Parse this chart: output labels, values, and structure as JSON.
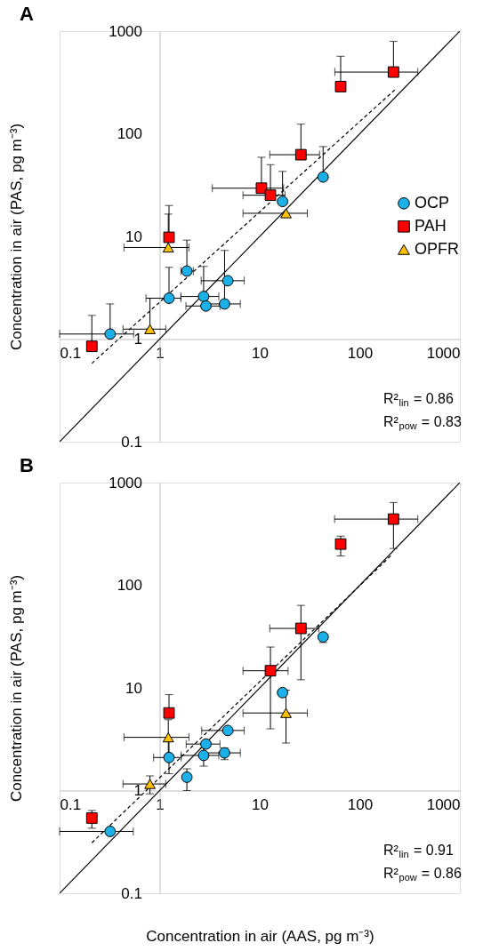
{
  "chart_data": [
    {
      "type": "scatter",
      "title": "A",
      "ylabel": "Concentration in air (PAS, pg m⁻³)",
      "xlim": [
        0.1,
        1000
      ],
      "ylim": [
        0.1,
        1000
      ],
      "xticks": [
        0.1,
        1,
        10,
        100,
        1000
      ],
      "yticks": [
        0.1,
        1,
        10,
        100,
        1000
      ],
      "log": "xy",
      "legend": "right",
      "annotations": [
        "R²$_{lin}$ = 0.86",
        "R²$_{pow}$ = 0.83"
      ],
      "series": [
        {
          "name": "OCP",
          "color": "#1cb0e8",
          "marker": "circle",
          "x": [
            0.32,
            1.24,
            1.87,
            2.75,
            2.9,
            4.45,
            4.8,
            16.9,
            43
          ],
          "values": [
            1.12,
            2.5,
            4.6,
            2.6,
            2.1,
            2.2,
            3.7,
            21.9,
            37.9
          ],
          "errors": [
            [
              1.12,
              2.2
            ],
            [
              2.5,
              5.0
            ],
            [
              4.6,
              9.2
            ],
            [
              2.6,
              5.1
            ],
            null,
            [
              2.2,
              7.3
            ],
            null,
            [
              21.9,
              43
            ],
            [
              37.9,
              75
            ]
          ],
          "xerrors": [
            [
              0.1,
              0.55
            ],
            [
              0.73,
              1.63
            ],
            [
              1.63,
              2.17
            ],
            [
              1.63,
              3.9
            ],
            [
              1.83,
              4.0
            ],
            [
              2.77,
              6.4
            ],
            [
              2.6,
              7.0
            ],
            null,
            null
          ]
        },
        {
          "name": "PAH",
          "color": "#ff0000",
          "marker": "square",
          "x": [
            0.21,
            1.24,
            10.4,
            12.8,
            25.8,
            64.4,
            217
          ],
          "values": [
            0.85,
            9.8,
            29.5,
            25.2,
            62.5,
            288,
            399
          ],
          "errors": [
            [
              0.85,
              1.7
            ],
            [
              9.8,
              20
            ],
            [
              29.5,
              59
            ],
            [
              25.2,
              50
            ],
            [
              62.5,
              124
            ],
            [
              288,
              569
            ],
            [
              399,
              794
            ]
          ],
          "xerrors": [
            null,
            null,
            [
              3.36,
              17.3
            ],
            [
              6.8,
              17.9
            ],
            [
              12.6,
              39.6
            ],
            null,
            [
              56.3,
              380
            ]
          ]
        },
        {
          "name": "OPFR",
          "color": "#ffc000",
          "marker": "triangle",
          "x": [
            0.8,
            1.22,
            18.3
          ],
          "values": [
            1.25,
            7.8,
            16.8
          ],
          "errors": [
            [
              1.25,
              2.5
            ],
            [
              7.8,
              16.5
            ],
            null
          ],
          "xerrors": [
            [
              0.43,
              1.15
            ],
            [
              0.44,
              1.96
            ],
            [
              6.8,
              29.9
            ]
          ]
        },
        {
          "type": "line",
          "color": "#000000",
          "line_style": "solid",
          "x": [
            0.1,
            1000
          ],
          "values": [
            0.1,
            1000
          ]
        },
        {
          "type": "line",
          "color": "#000000",
          "line_style": "dashed",
          "x": [
            0.21,
            225
          ],
          "values": [
            0.58,
            269
          ]
        }
      ]
    },
    {
      "type": "scatter",
      "title": "B",
      "xlabel": "Concentration in air (AAS, pg m⁻³)",
      "ylabel": "Concentration in air (PAS, pg m⁻³)",
      "xlim": [
        0.1,
        1000
      ],
      "ylim": [
        0.1,
        1000
      ],
      "xticks": [
        0.1,
        1,
        10,
        100,
        1000
      ],
      "yticks": [
        0.1,
        1,
        10,
        100,
        1000
      ],
      "log": "xy",
      "legend": "right",
      "annotations": [
        "R²$_{lin}$ = 0.91",
        "R²$_{pow}$ = 0.86"
      ],
      "series": [
        {
          "name": "OCP",
          "color": "#1cb0e8",
          "marker": "circle",
          "x": [
            0.32,
            1.24,
            1.87,
            2.75,
            2.9,
            4.45,
            4.8,
            16.9,
            43
          ],
          "values": [
            0.4,
            2.1,
            1.35,
            2.2,
            2.84,
            2.33,
            3.85,
            9.0,
            31.4
          ],
          "errors": [
            null,
            [
              1.46,
              3.04
            ],
            [
              1.0,
              1.63
            ],
            [
              1.73,
              2.6
            ],
            null,
            [
              2.0,
              2.6
            ],
            null,
            null,
            [
              27.7,
              31.4
            ]
          ],
          "xerrors": [
            [
              0.1,
              0.545
            ],
            [
              0.87,
              1.64
            ],
            null,
            [
              1.64,
              3.9
            ],
            [
              1.84,
              4.0
            ],
            [
              2.75,
              6.4
            ],
            [
              2.63,
              7.0
            ],
            null,
            null
          ]
        },
        {
          "name": "PAH",
          "color": "#ff0000",
          "marker": "square",
          "x": [
            0.21,
            1.24,
            12.8,
            25.8,
            64.4,
            217
          ],
          "values": [
            0.54,
            5.7,
            14.7,
            38,
            252,
            441
          ],
          "errors": [
            [
              0.43,
              0.64
            ],
            [
              5.7,
              8.6
            ],
            [
              4.0,
              25
            ],
            [
              12.0,
              63.7
            ],
            [
              193,
              301
            ],
            [
              228,
              640
            ]
          ],
          "xerrors": [
            null,
            null,
            [
              6.8,
              19.2
            ],
            [
              12.6,
              38.9
            ],
            null,
            [
              56,
              380
            ]
          ]
        },
        {
          "name": "OPFR",
          "color": "#ffc000",
          "marker": "triangle",
          "x": [
            0.8,
            1.22,
            18.3
          ],
          "values": [
            1.16,
            3.3,
            5.7
          ],
          "errors": [
            [
              0.93,
              1.39
            ],
            [
              2.2,
              4.9
            ],
            [
              2.9,
              9.5
            ]
          ],
          "xerrors": [
            [
              0.43,
              1.15
            ],
            [
              0.44,
              1.96
            ],
            [
              6.8,
              29.9
            ]
          ]
        },
        {
          "type": "line",
          "color": "#000000",
          "line_style": "solid",
          "x": [
            0.1,
            1000
          ],
          "values": [
            0.1,
            1000
          ]
        },
        {
          "type": "line",
          "color": "#000000",
          "line_style": "dashed",
          "x": [
            0.21,
            209
          ],
          "values": [
            0.31,
            198
          ]
        }
      ]
    }
  ]
}
